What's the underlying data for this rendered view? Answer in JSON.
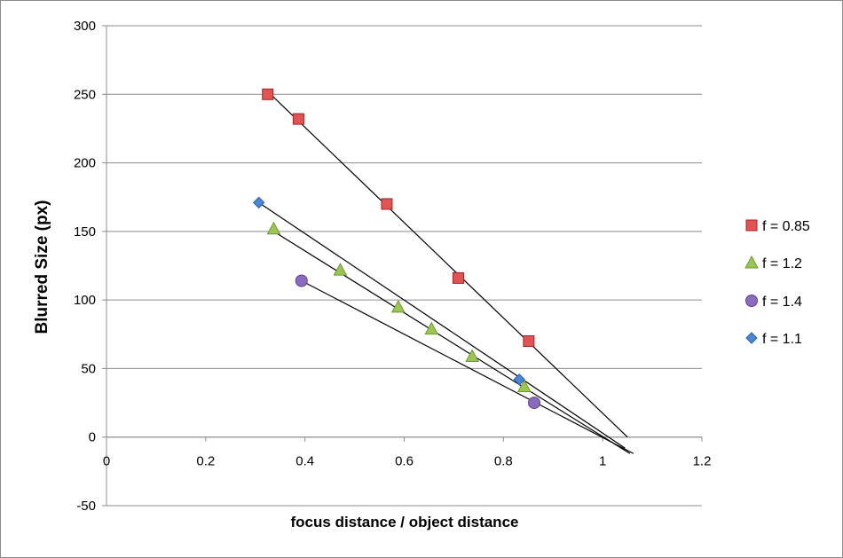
{
  "chart_data": {
    "type": "scatter",
    "title": "",
    "xlabel": "focus distance / object distance",
    "ylabel": "Blurred Size (px)",
    "xlim": [
      0,
      1.2
    ],
    "ylim": [
      -50,
      300
    ],
    "x_ticks": [
      "0",
      "0.2",
      "0.4",
      "0.6",
      "0.8",
      "1",
      "1.2"
    ],
    "y_ticks": [
      "-50",
      "0",
      "50",
      "100",
      "150",
      "200",
      "250",
      "300"
    ],
    "x_tick_values": [
      0,
      0.2,
      0.4,
      0.6,
      0.8,
      1,
      1.2
    ],
    "y_tick_values": [
      -50,
      0,
      50,
      100,
      150,
      200,
      250,
      300
    ],
    "grid": "horizontal",
    "legend_position": "right",
    "series": [
      {
        "name": "f = 0.85",
        "marker": "square",
        "color": "#e15454",
        "stroke": "#a32424",
        "points": [
          [
            0.325,
            250
          ],
          [
            0.387,
            232
          ],
          [
            0.565,
            170
          ],
          [
            0.709,
            116
          ],
          [
            0.851,
            70
          ]
        ],
        "trendline": [
          [
            0.325,
            252
          ],
          [
            1.05,
            0
          ]
        ]
      },
      {
        "name": "f = 1.2",
        "marker": "triangle",
        "color": "#9bc655",
        "stroke": "#6e9a2c",
        "points": [
          [
            0.337,
            152
          ],
          [
            0.471,
            122
          ],
          [
            0.588,
            95
          ],
          [
            0.655,
            79
          ],
          [
            0.737,
            59
          ],
          [
            0.842,
            37
          ]
        ],
        "trendline": [
          [
            0.337,
            150
          ],
          [
            1.055,
            -12
          ]
        ]
      },
      {
        "name": "f = 1.4",
        "marker": "circle",
        "color": "#8a6bbd",
        "stroke": "#5d4390",
        "points": [
          [
            0.393,
            114
          ],
          [
            0.862,
            25
          ]
        ],
        "trendline": [
          [
            0.393,
            114
          ],
          [
            1.062,
            -12
          ]
        ]
      },
      {
        "name": "f = 1.1",
        "marker": "diamond",
        "color": "#4a87d4",
        "stroke": "#2a5ea8",
        "points": [
          [
            0.307,
            171
          ],
          [
            0.832,
            42
          ]
        ],
        "trendline": [
          [
            0.307,
            171
          ],
          [
            1.045,
            -8
          ]
        ]
      }
    ]
  }
}
